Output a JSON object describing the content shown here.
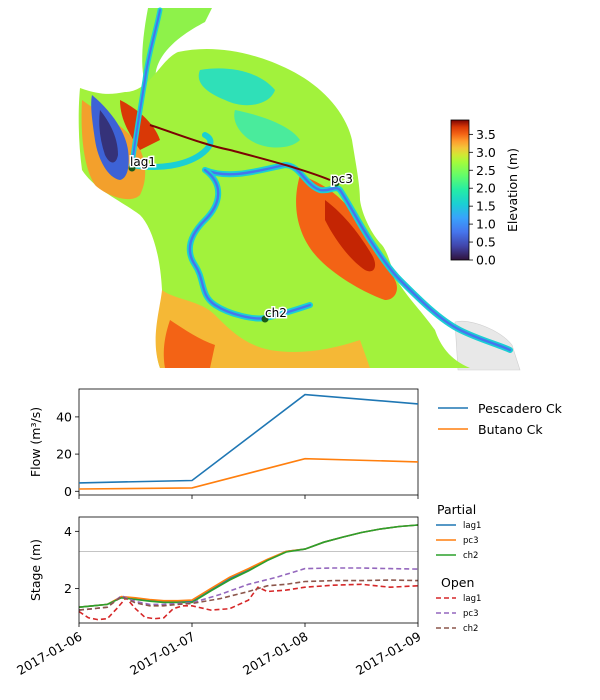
{
  "colors": {
    "pescadero": "#1f77b4",
    "butano": "#ff7f0e",
    "ch2": "#2ca02c",
    "open_lag1": "#d62728",
    "open_pc3": "#9467bd",
    "open_ch2": "#8c564b",
    "hline": "#b0b0b0"
  },
  "map": {
    "colorbar_label": "Elevation (m)",
    "colorbar_ticks": [
      "0.0",
      "0.5",
      "1.0",
      "1.5",
      "2.0",
      "2.5",
      "3.0",
      "3.5"
    ],
    "colorbar_range": [
      0.0,
      3.9
    ],
    "colormap": "turbo",
    "stations": [
      "lag1",
      "pc3",
      "ch2"
    ]
  },
  "chart_data": [
    {
      "type": "line",
      "ylabel": "Flow (m³/s)",
      "x": [
        "2017-01-06",
        "2017-01-07",
        "2017-01-08",
        "2017-01-09"
      ],
      "xlim": [
        "2017-01-06",
        "2017-01-09"
      ],
      "ylim": [
        -2,
        55
      ],
      "yticks": [
        "0",
        "20",
        "40"
      ],
      "series": [
        {
          "name": "Pescadero Ck",
          "values": [
            4.5,
            5.8,
            52,
            47
          ]
        },
        {
          "name": "Butano Ck",
          "values": [
            1.2,
            1.8,
            17.5,
            15.8
          ]
        }
      ],
      "legend": "right"
    },
    {
      "type": "line",
      "ylabel": "Stage (m)",
      "xlim": [
        "2017-01-06",
        "2017-01-09"
      ],
      "ylim": [
        0.8,
        4.5
      ],
      "yticks": [
        "2",
        "4"
      ],
      "xticks": [
        "2017-01-06",
        "2017-01-07",
        "2017-01-08",
        "2017-01-09"
      ],
      "reference_line": 3.3,
      "legend": "right",
      "legend_groups": [
        {
          "title": "Partial",
          "style": "solid",
          "entries": [
            "lag1",
            "pc3",
            "ch2"
          ]
        },
        {
          "title": "Open",
          "style": "dashed",
          "entries": [
            "lag1",
            "pc3",
            "ch2"
          ]
        }
      ],
      "series": [
        {
          "name": "lag1",
          "group": "Partial",
          "x": [
            "2017-01-06 00:00",
            "2017-01-06 03:00",
            "2017-01-06 06:00",
            "2017-01-06 09:00",
            "2017-01-06 12:00",
            "2017-01-06 15:00",
            "2017-01-06 18:00",
            "2017-01-06 21:00",
            "2017-01-07 00:00",
            "2017-01-07 04:00",
            "2017-01-07 08:00",
            "2017-01-07 12:00",
            "2017-01-07 16:00",
            "2017-01-07 20:00",
            "2017-01-08 00:00",
            "2017-01-08 04:00",
            "2017-01-08 08:00",
            "2017-01-08 12:00",
            "2017-01-08 16:00",
            "2017-01-08 20:00",
            "2017-01-09 00:00"
          ],
          "values": [
            1.35,
            1.4,
            1.45,
            1.7,
            1.65,
            1.6,
            1.55,
            1.55,
            1.55,
            1.95,
            2.35,
            2.65,
            3.0,
            3.3,
            3.38,
            3.62,
            3.8,
            3.96,
            4.08,
            4.17,
            4.22
          ]
        },
        {
          "name": "pc3",
          "group": "Partial",
          "x": [
            "2017-01-06 00:00",
            "2017-01-06 03:00",
            "2017-01-06 06:00",
            "2017-01-06 09:00",
            "2017-01-06 12:00",
            "2017-01-06 15:00",
            "2017-01-06 18:00",
            "2017-01-06 21:00",
            "2017-01-07 00:00",
            "2017-01-07 04:00",
            "2017-01-07 08:00",
            "2017-01-07 12:00",
            "2017-01-07 16:00",
            "2017-01-07 20:00",
            "2017-01-08 00:00",
            "2017-01-08 04:00",
            "2017-01-08 08:00",
            "2017-01-08 12:00",
            "2017-01-08 16:00",
            "2017-01-08 20:00",
            "2017-01-09 00:00"
          ],
          "values": [
            1.35,
            1.4,
            1.45,
            1.72,
            1.68,
            1.62,
            1.58,
            1.58,
            1.6,
            2.0,
            2.4,
            2.7,
            3.02,
            3.3,
            3.38,
            3.62,
            3.8,
            3.96,
            4.08,
            4.17,
            4.22
          ]
        },
        {
          "name": "ch2",
          "group": "Partial",
          "x": [
            "2017-01-06 00:00",
            "2017-01-06 03:00",
            "2017-01-06 06:00",
            "2017-01-06 09:00",
            "2017-01-06 12:00",
            "2017-01-06 15:00",
            "2017-01-06 18:00",
            "2017-01-06 21:00",
            "2017-01-07 00:00",
            "2017-01-07 04:00",
            "2017-01-07 08:00",
            "2017-01-07 12:00",
            "2017-01-07 16:00",
            "2017-01-07 20:00",
            "2017-01-08 00:00",
            "2017-01-08 04:00",
            "2017-01-08 08:00",
            "2017-01-08 12:00",
            "2017-01-08 16:00",
            "2017-01-08 20:00",
            "2017-01-09 00:00"
          ],
          "values": [
            1.35,
            1.4,
            1.45,
            1.68,
            1.62,
            1.56,
            1.52,
            1.52,
            1.52,
            1.92,
            2.3,
            2.62,
            2.98,
            3.28,
            3.38,
            3.62,
            3.8,
            3.96,
            4.08,
            4.17,
            4.22
          ]
        },
        {
          "name": "lag1",
          "group": "Open",
          "x": [
            "2017-01-06 00:00",
            "2017-01-06 02:00",
            "2017-01-06 04:00",
            "2017-01-06 06:00",
            "2017-01-06 08:00",
            "2017-01-06 10:00",
            "2017-01-06 12:00",
            "2017-01-06 14:00",
            "2017-01-06 16:00",
            "2017-01-06 18:00",
            "2017-01-06 20:00",
            "2017-01-06 22:00",
            "2017-01-07 00:00",
            "2017-01-07 04:00",
            "2017-01-07 08:00",
            "2017-01-07 12:00",
            "2017-01-07 14:00",
            "2017-01-07 16:00",
            "2017-01-07 20:00",
            "2017-01-08 00:00",
            "2017-01-08 06:00",
            "2017-01-08 12:00",
            "2017-01-08 18:00",
            "2017-01-09 00:00"
          ],
          "values": [
            1.2,
            0.98,
            0.92,
            0.95,
            1.3,
            1.68,
            1.3,
            1.0,
            0.95,
            0.98,
            1.3,
            1.4,
            1.4,
            1.25,
            1.3,
            1.6,
            2.05,
            1.9,
            1.95,
            2.05,
            2.12,
            2.15,
            2.05,
            2.1
          ]
        },
        {
          "name": "pc3",
          "group": "Open",
          "x": [
            "2017-01-06 00:00",
            "2017-01-06 03:00",
            "2017-01-06 06:00",
            "2017-01-06 09:00",
            "2017-01-06 12:00",
            "2017-01-06 15:00",
            "2017-01-06 18:00",
            "2017-01-06 21:00",
            "2017-01-07 00:00",
            "2017-01-07 06:00",
            "2017-01-07 12:00",
            "2017-01-07 18:00",
            "2017-01-08 00:00",
            "2017-01-08 06:00",
            "2017-01-08 12:00",
            "2017-01-08 18:00",
            "2017-01-09 00:00"
          ],
          "values": [
            1.25,
            1.3,
            1.35,
            1.75,
            1.55,
            1.45,
            1.45,
            1.48,
            1.5,
            1.8,
            2.15,
            2.4,
            2.7,
            2.72,
            2.72,
            2.7,
            2.68
          ]
        },
        {
          "name": "ch2",
          "group": "Open",
          "x": [
            "2017-01-06 00:00",
            "2017-01-06 03:00",
            "2017-01-06 06:00",
            "2017-01-06 09:00",
            "2017-01-06 12:00",
            "2017-01-06 15:00",
            "2017-01-06 18:00",
            "2017-01-06 21:00",
            "2017-01-07 00:00",
            "2017-01-07 06:00",
            "2017-01-07 12:00",
            "2017-01-07 16:00",
            "2017-01-07 20:00",
            "2017-01-08 00:00",
            "2017-01-08 06:00",
            "2017-01-08 12:00",
            "2017-01-08 18:00",
            "2017-01-09 00:00"
          ],
          "values": [
            1.25,
            1.3,
            1.35,
            1.72,
            1.5,
            1.4,
            1.4,
            1.45,
            1.48,
            1.65,
            1.9,
            2.1,
            2.15,
            2.25,
            2.28,
            2.28,
            2.3,
            2.28
          ]
        }
      ]
    }
  ]
}
